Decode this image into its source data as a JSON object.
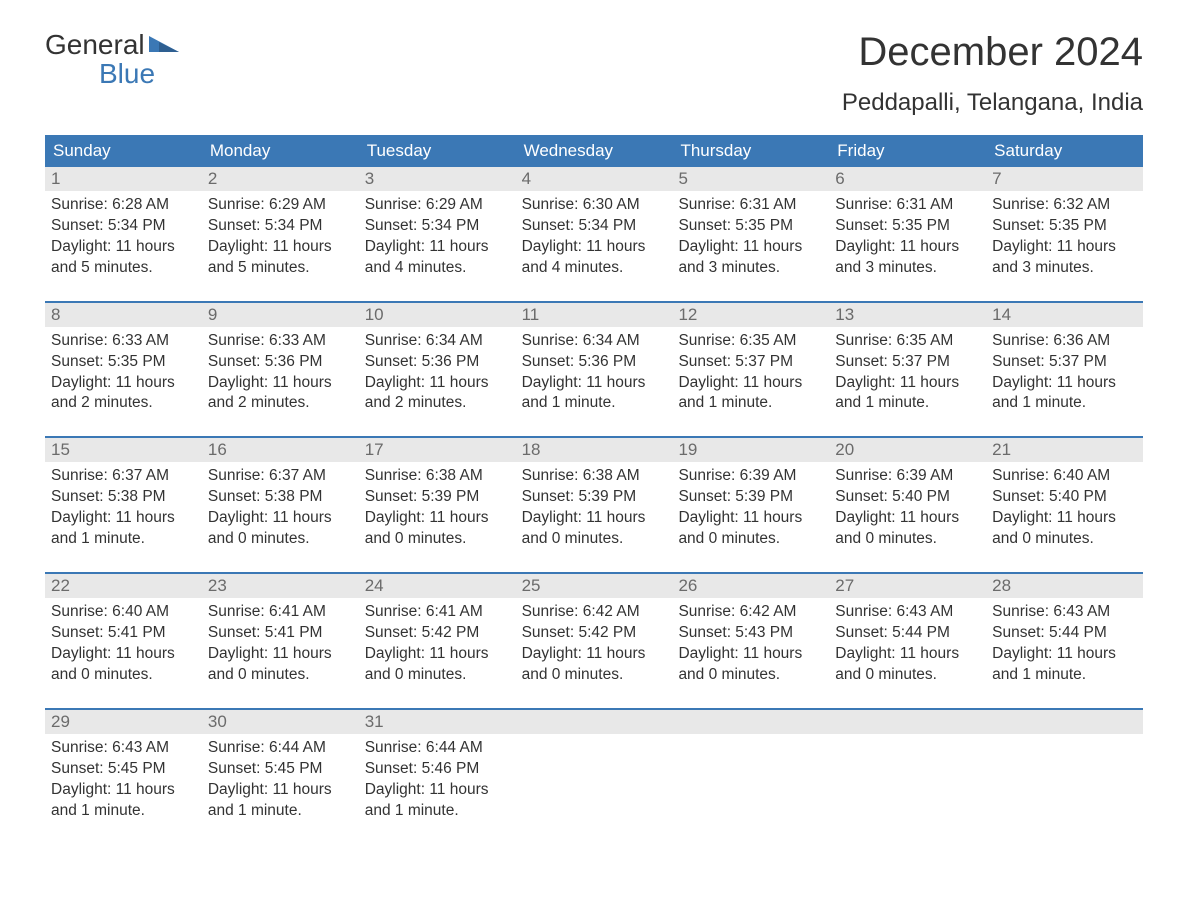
{
  "brand": {
    "word1": "General",
    "word2": "Blue"
  },
  "title": "December 2024",
  "subtitle": "Peddapalli, Telangana, India",
  "colors": {
    "accent": "#3b78b5",
    "header_bg": "#3b78b5",
    "header_text": "#ffffff",
    "daynum_bg": "#e8e8e8",
    "daynum_text": "#6b6b6b",
    "body_text": "#333333",
    "page_bg": "#ffffff",
    "week_border": "#3b78b5"
  },
  "typography": {
    "title_fontsize": 40,
    "subtitle_fontsize": 24,
    "dow_fontsize": 17,
    "daynum_fontsize": 17,
    "body_fontsize": 15.5,
    "logo_fontsize": 28
  },
  "daysOfWeek": [
    "Sunday",
    "Monday",
    "Tuesday",
    "Wednesday",
    "Thursday",
    "Friday",
    "Saturday"
  ],
  "weeks": [
    [
      {
        "n": "1",
        "sunrise": "Sunrise: 6:28 AM",
        "sunset": "Sunset: 5:34 PM",
        "daylight": "Daylight: 11 hours and 5 minutes."
      },
      {
        "n": "2",
        "sunrise": "Sunrise: 6:29 AM",
        "sunset": "Sunset: 5:34 PM",
        "daylight": "Daylight: 11 hours and 5 minutes."
      },
      {
        "n": "3",
        "sunrise": "Sunrise: 6:29 AM",
        "sunset": "Sunset: 5:34 PM",
        "daylight": "Daylight: 11 hours and 4 minutes."
      },
      {
        "n": "4",
        "sunrise": "Sunrise: 6:30 AM",
        "sunset": "Sunset: 5:34 PM",
        "daylight": "Daylight: 11 hours and 4 minutes."
      },
      {
        "n": "5",
        "sunrise": "Sunrise: 6:31 AM",
        "sunset": "Sunset: 5:35 PM",
        "daylight": "Daylight: 11 hours and 3 minutes."
      },
      {
        "n": "6",
        "sunrise": "Sunrise: 6:31 AM",
        "sunset": "Sunset: 5:35 PM",
        "daylight": "Daylight: 11 hours and 3 minutes."
      },
      {
        "n": "7",
        "sunrise": "Sunrise: 6:32 AM",
        "sunset": "Sunset: 5:35 PM",
        "daylight": "Daylight: 11 hours and 3 minutes."
      }
    ],
    [
      {
        "n": "8",
        "sunrise": "Sunrise: 6:33 AM",
        "sunset": "Sunset: 5:35 PM",
        "daylight": "Daylight: 11 hours and 2 minutes."
      },
      {
        "n": "9",
        "sunrise": "Sunrise: 6:33 AM",
        "sunset": "Sunset: 5:36 PM",
        "daylight": "Daylight: 11 hours and 2 minutes."
      },
      {
        "n": "10",
        "sunrise": "Sunrise: 6:34 AM",
        "sunset": "Sunset: 5:36 PM",
        "daylight": "Daylight: 11 hours and 2 minutes."
      },
      {
        "n": "11",
        "sunrise": "Sunrise: 6:34 AM",
        "sunset": "Sunset: 5:36 PM",
        "daylight": "Daylight: 11 hours and 1 minute."
      },
      {
        "n": "12",
        "sunrise": "Sunrise: 6:35 AM",
        "sunset": "Sunset: 5:37 PM",
        "daylight": "Daylight: 11 hours and 1 minute."
      },
      {
        "n": "13",
        "sunrise": "Sunrise: 6:35 AM",
        "sunset": "Sunset: 5:37 PM",
        "daylight": "Daylight: 11 hours and 1 minute."
      },
      {
        "n": "14",
        "sunrise": "Sunrise: 6:36 AM",
        "sunset": "Sunset: 5:37 PM",
        "daylight": "Daylight: 11 hours and 1 minute."
      }
    ],
    [
      {
        "n": "15",
        "sunrise": "Sunrise: 6:37 AM",
        "sunset": "Sunset: 5:38 PM",
        "daylight": "Daylight: 11 hours and 1 minute."
      },
      {
        "n": "16",
        "sunrise": "Sunrise: 6:37 AM",
        "sunset": "Sunset: 5:38 PM",
        "daylight": "Daylight: 11 hours and 0 minutes."
      },
      {
        "n": "17",
        "sunrise": "Sunrise: 6:38 AM",
        "sunset": "Sunset: 5:39 PM",
        "daylight": "Daylight: 11 hours and 0 minutes."
      },
      {
        "n": "18",
        "sunrise": "Sunrise: 6:38 AM",
        "sunset": "Sunset: 5:39 PM",
        "daylight": "Daylight: 11 hours and 0 minutes."
      },
      {
        "n": "19",
        "sunrise": "Sunrise: 6:39 AM",
        "sunset": "Sunset: 5:39 PM",
        "daylight": "Daylight: 11 hours and 0 minutes."
      },
      {
        "n": "20",
        "sunrise": "Sunrise: 6:39 AM",
        "sunset": "Sunset: 5:40 PM",
        "daylight": "Daylight: 11 hours and 0 minutes."
      },
      {
        "n": "21",
        "sunrise": "Sunrise: 6:40 AM",
        "sunset": "Sunset: 5:40 PM",
        "daylight": "Daylight: 11 hours and 0 minutes."
      }
    ],
    [
      {
        "n": "22",
        "sunrise": "Sunrise: 6:40 AM",
        "sunset": "Sunset: 5:41 PM",
        "daylight": "Daylight: 11 hours and 0 minutes."
      },
      {
        "n": "23",
        "sunrise": "Sunrise: 6:41 AM",
        "sunset": "Sunset: 5:41 PM",
        "daylight": "Daylight: 11 hours and 0 minutes."
      },
      {
        "n": "24",
        "sunrise": "Sunrise: 6:41 AM",
        "sunset": "Sunset: 5:42 PM",
        "daylight": "Daylight: 11 hours and 0 minutes."
      },
      {
        "n": "25",
        "sunrise": "Sunrise: 6:42 AM",
        "sunset": "Sunset: 5:42 PM",
        "daylight": "Daylight: 11 hours and 0 minutes."
      },
      {
        "n": "26",
        "sunrise": "Sunrise: 6:42 AM",
        "sunset": "Sunset: 5:43 PM",
        "daylight": "Daylight: 11 hours and 0 minutes."
      },
      {
        "n": "27",
        "sunrise": "Sunrise: 6:43 AM",
        "sunset": "Sunset: 5:44 PM",
        "daylight": "Daylight: 11 hours and 0 minutes."
      },
      {
        "n": "28",
        "sunrise": "Sunrise: 6:43 AM",
        "sunset": "Sunset: 5:44 PM",
        "daylight": "Daylight: 11 hours and 1 minute."
      }
    ],
    [
      {
        "n": "29",
        "sunrise": "Sunrise: 6:43 AM",
        "sunset": "Sunset: 5:45 PM",
        "daylight": "Daylight: 11 hours and 1 minute."
      },
      {
        "n": "30",
        "sunrise": "Sunrise: 6:44 AM",
        "sunset": "Sunset: 5:45 PM",
        "daylight": "Daylight: 11 hours and 1 minute."
      },
      {
        "n": "31",
        "sunrise": "Sunrise: 6:44 AM",
        "sunset": "Sunset: 5:46 PM",
        "daylight": "Daylight: 11 hours and 1 minute."
      },
      {
        "n": "",
        "sunrise": "",
        "sunset": "",
        "daylight": ""
      },
      {
        "n": "",
        "sunrise": "",
        "sunset": "",
        "daylight": ""
      },
      {
        "n": "",
        "sunrise": "",
        "sunset": "",
        "daylight": ""
      },
      {
        "n": "",
        "sunrise": "",
        "sunset": "",
        "daylight": ""
      }
    ]
  ]
}
